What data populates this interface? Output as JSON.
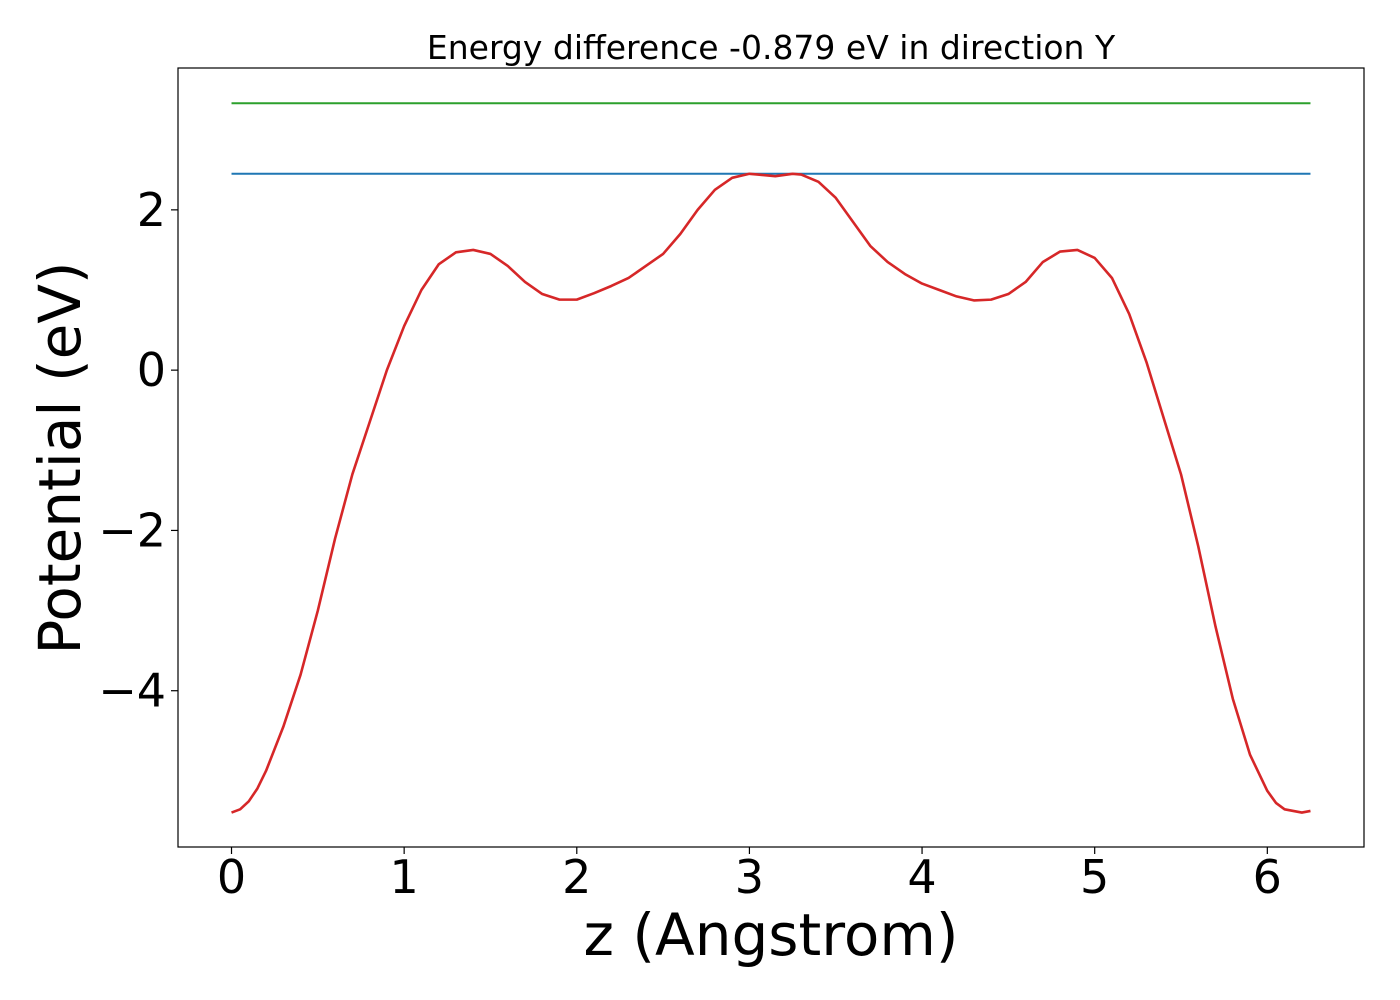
{
  "chart_data": {
    "type": "line",
    "title": "Energy difference -0.879 eV in direction Y",
    "xlabel": "z (Angstrom)",
    "ylabel": "Potential (eV)",
    "xlim": [
      -0.31,
      6.56
    ],
    "ylim": [
      -5.95,
      3.77
    ],
    "xticks": [
      0,
      1,
      2,
      3,
      4,
      5,
      6
    ],
    "yticks": [
      -4,
      -2,
      0,
      2
    ],
    "xtick_labels": [
      "0",
      "1",
      "2",
      "3",
      "4",
      "5",
      "6"
    ],
    "ytick_labels": [
      "−4",
      "−2",
      "0",
      "2"
    ],
    "grid": false,
    "series": [
      {
        "color": "#2ca02c",
        "x": [
          0,
          6.25
        ],
        "y": [
          3.33,
          3.33
        ]
      },
      {
        "color": "#1f77b4",
        "x": [
          0,
          6.25
        ],
        "y": [
          2.45,
          2.45
        ]
      },
      {
        "color": "#d62728",
        "x": [
          0,
          0.05,
          0.1,
          0.15,
          0.2,
          0.3,
          0.4,
          0.5,
          0.6,
          0.7,
          0.8,
          0.9,
          1.0,
          1.1,
          1.2,
          1.3,
          1.4,
          1.5,
          1.6,
          1.7,
          1.8,
          1.9,
          2.0,
          2.1,
          2.2,
          2.3,
          2.4,
          2.5,
          2.6,
          2.7,
          2.8,
          2.9,
          3.0,
          3.05,
          3.15,
          3.25,
          3.3,
          3.4,
          3.5,
          3.6,
          3.7,
          3.8,
          3.9,
          4.0,
          4.1,
          4.2,
          4.3,
          4.4,
          4.5,
          4.6,
          4.7,
          4.8,
          4.9,
          5.0,
          5.1,
          5.2,
          5.3,
          5.4,
          5.5,
          5.6,
          5.7,
          5.8,
          5.9,
          6.0,
          6.05,
          6.1,
          6.15,
          6.2,
          6.25
        ],
        "y": [
          -5.52,
          -5.48,
          -5.38,
          -5.22,
          -5.0,
          -4.45,
          -3.8,
          -3.0,
          -2.1,
          -1.3,
          -0.65,
          0.0,
          0.55,
          1.0,
          1.32,
          1.47,
          1.5,
          1.45,
          1.3,
          1.1,
          0.95,
          0.88,
          0.88,
          0.96,
          1.05,
          1.15,
          1.3,
          1.45,
          1.7,
          2.0,
          2.25,
          2.4,
          2.45,
          2.44,
          2.42,
          2.45,
          2.44,
          2.35,
          2.15,
          1.85,
          1.55,
          1.35,
          1.2,
          1.08,
          1.0,
          0.92,
          0.87,
          0.88,
          0.95,
          1.1,
          1.35,
          1.48,
          1.5,
          1.4,
          1.15,
          0.7,
          0.1,
          -0.6,
          -1.3,
          -2.2,
          -3.2,
          -4.1,
          -4.8,
          -5.25,
          -5.4,
          -5.48,
          -5.5,
          -5.52,
          -5.5
        ]
      }
    ]
  }
}
